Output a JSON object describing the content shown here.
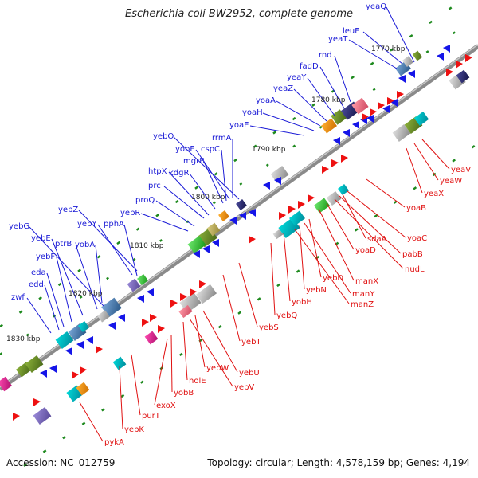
{
  "title": "Escherichia coli BW2952, complete genome",
  "footer": {
    "accession": "Accession: NC_012759",
    "info": "Topology: circular; Length: 4,578,159 bp; Genes: 4,194"
  },
  "colors": {
    "forward_label": "#1a1ad6",
    "reverse_label": "#e01010",
    "forward_arrow": "#1515e8",
    "reverse_arrow": "#ee1111",
    "backbone": "#8a8a8a",
    "tick": "#1e8a1e"
  },
  "ticks": [
    "1770 kbp",
    "1780 kbp",
    "1790 kbp",
    "1800 kbp",
    "1810 kbp",
    "1820 kbp",
    "1830 kbp"
  ],
  "forward_genes": [
    "yeaQ",
    "leuE",
    "yeaT",
    "rnd",
    "fadD",
    "yeaY",
    "yeaZ",
    "yoaA",
    "yoaH",
    "yoaE",
    "yebO",
    "rrmA",
    "yobF",
    "cspC",
    "mgrB",
    "kdgR",
    "htpX",
    "prc",
    "proQ",
    "yebR",
    "yebZ",
    "yebY",
    "pphA",
    "yebG",
    "ptrB",
    "yebE",
    "yobA",
    "yebF",
    "eda",
    "edd",
    "zwf"
  ],
  "reverse_genes": [
    "yeaV",
    "yeaW",
    "yeaX",
    "yoaB",
    "yoaC",
    "sdaA",
    "pabB",
    "nudL",
    "yoaD",
    "manX",
    "yebD",
    "manY",
    "yebN",
    "manZ",
    "yobH",
    "yebQ",
    "yebS",
    "yebT",
    "yebU",
    "yebW",
    "yebV",
    "holE",
    "yobB",
    "exoX",
    "purT",
    "yebK",
    "pykA"
  ]
}
